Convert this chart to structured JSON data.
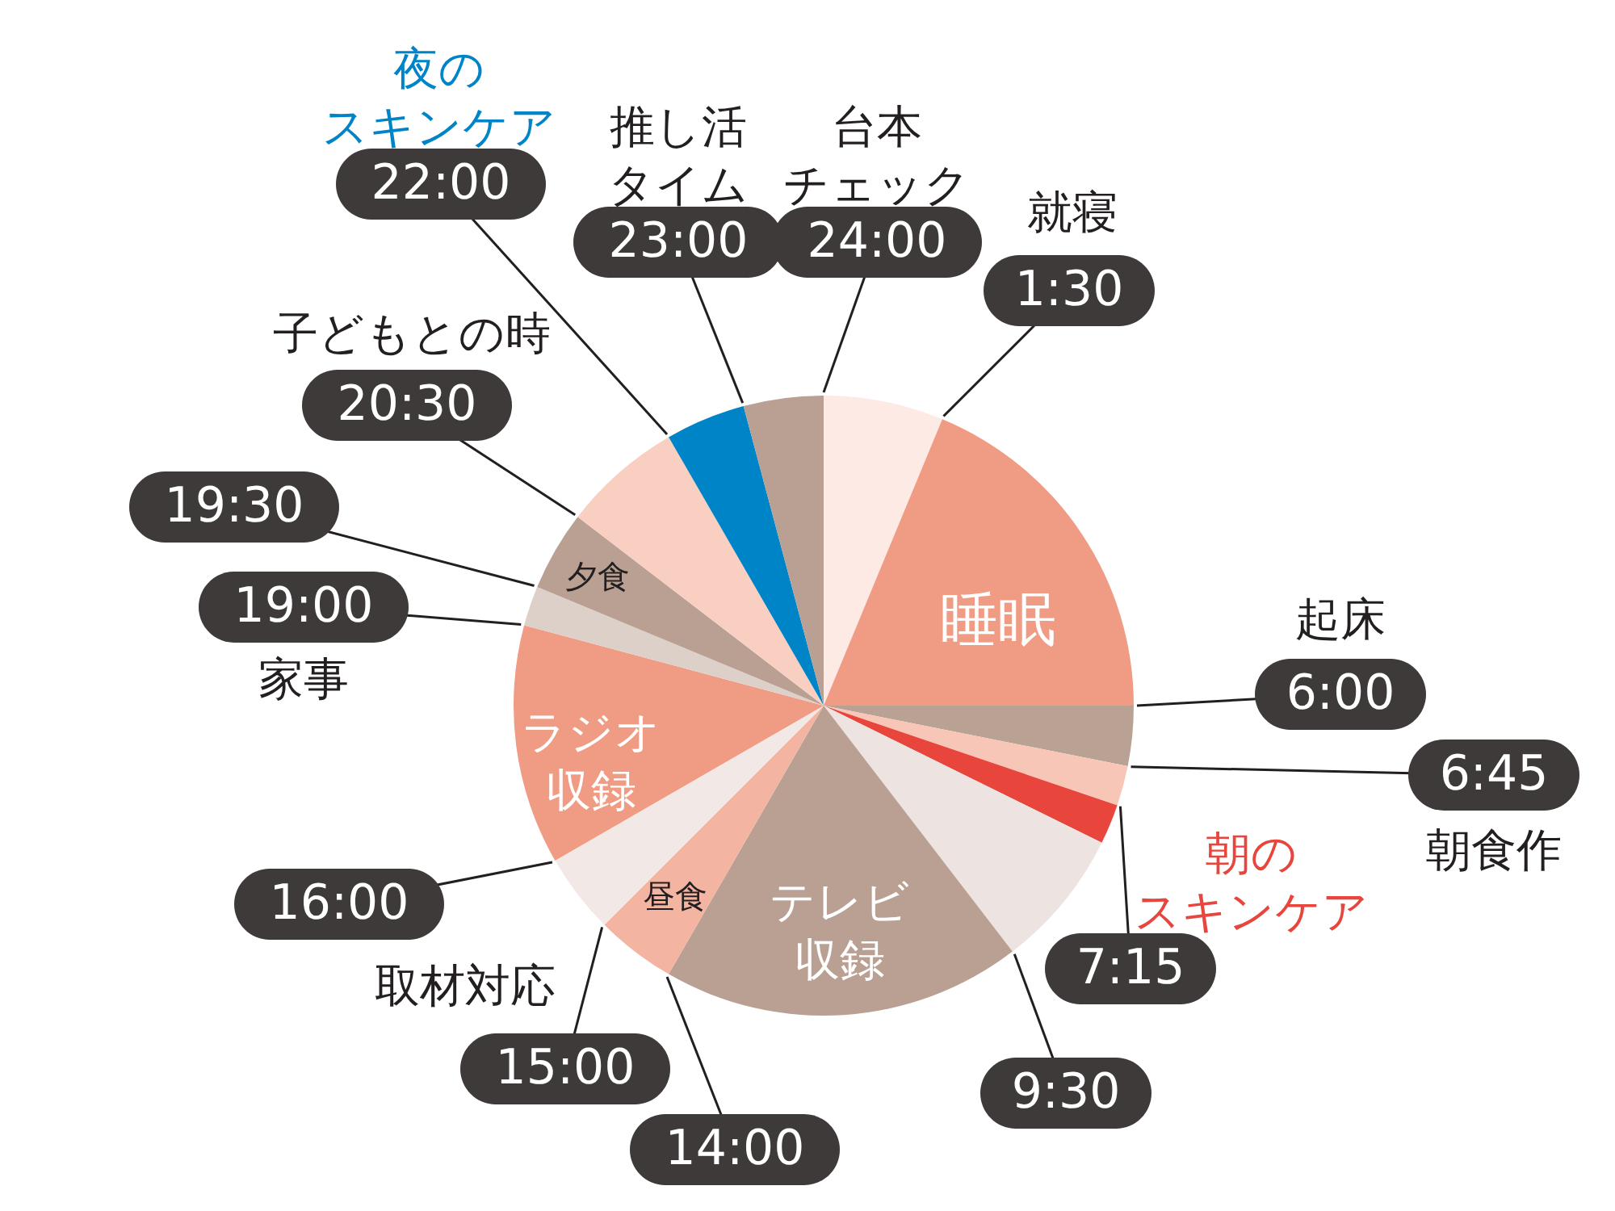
{
  "chart_data": {
    "type": "pie",
    "categories": [
      "台本チェック",
      "睡眠",
      "起床",
      "朝食作",
      "朝のスキンケア",
      null,
      "テレビ収録",
      "昼食",
      "取材対応",
      "ラジオ収録",
      "家事",
      "夕食",
      "子どもとの時",
      "夜のスキンケア",
      "推し活タイム"
    ],
    "values": [
      6.25,
      18.75,
      3.13,
      2.08,
      2.08,
      7.29,
      18.75,
      4.17,
      4.17,
      12.5,
      2.08,
      4.17,
      6.25,
      4.17,
      4.16
    ],
    "colors": [
      "#fdeae5",
      "#f09b84",
      "#b9a194",
      "#f8c6b7",
      "#e8453c",
      "#ede3e0",
      "#b9a093",
      "#f4b4a2",
      "#f2e9e6",
      "#f09b84",
      "#ddd0c9",
      "#b9a093",
      "#f9cfc2",
      "#0084c8",
      "#b9a093"
    ],
    "annotations": [
      "24:00",
      "1:30",
      "6:00",
      "6:45",
      "7:15",
      "9:30",
      "14:00",
      "15:00",
      "16:00",
      "19:00",
      "19:30",
      "20:30",
      "22:00",
      "23:00",
      "就寝"
    ],
    "legend": false
  }
}
